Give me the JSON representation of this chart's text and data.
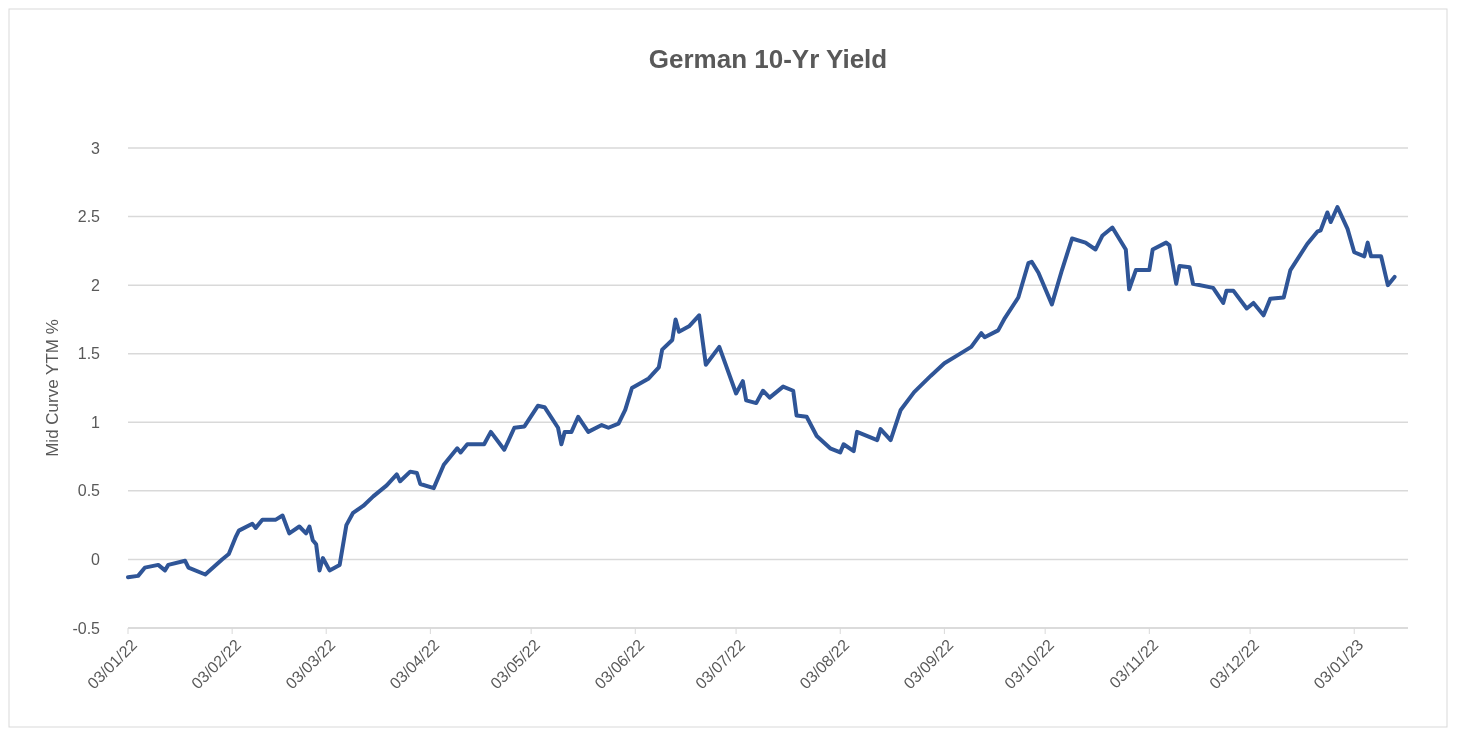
{
  "chart_data": {
    "type": "line",
    "title": "German 10-Yr Yield",
    "ylabel": "Mid Curve YTM %",
    "x": [
      "2022-01-03",
      "2022-01-06",
      "2022-01-08",
      "2022-01-12",
      "2022-01-14",
      "2022-01-15",
      "2022-01-20",
      "2022-01-21",
      "2022-01-26",
      "2022-01-31",
      "2022-02-02",
      "2022-02-04",
      "2022-02-05",
      "2022-02-09",
      "2022-02-10",
      "2022-02-12",
      "2022-02-16",
      "2022-02-18",
      "2022-02-20",
      "2022-02-23",
      "2022-02-25",
      "2022-02-26",
      "2022-02-27",
      "2022-02-28",
      "2022-03-01",
      "2022-03-02",
      "2022-03-04",
      "2022-03-07",
      "2022-03-09",
      "2022-03-11",
      "2022-03-14",
      "2022-03-17",
      "2022-03-21",
      "2022-03-24",
      "2022-03-25",
      "2022-03-28",
      "2022-03-30",
      "2022-03-31",
      "2022-04-04",
      "2022-04-07",
      "2022-04-11",
      "2022-04-12",
      "2022-04-14",
      "2022-04-19",
      "2022-04-21",
      "2022-04-25",
      "2022-04-28",
      "2022-05-01",
      "2022-05-05",
      "2022-05-07",
      "2022-05-11",
      "2022-05-12",
      "2022-05-13",
      "2022-05-15",
      "2022-05-17",
      "2022-05-20",
      "2022-05-24",
      "2022-05-26",
      "2022-05-29",
      "2022-05-31",
      "2022-06-02",
      "2022-06-07",
      "2022-06-10",
      "2022-06-11",
      "2022-06-14",
      "2022-06-15",
      "2022-06-16",
      "2022-06-19",
      "2022-06-22",
      "2022-06-24",
      "2022-06-28",
      "2022-07-03",
      "2022-07-05",
      "2022-07-06",
      "2022-07-09",
      "2022-07-11",
      "2022-07-13",
      "2022-07-17",
      "2022-07-20",
      "2022-07-21",
      "2022-07-24",
      "2022-07-27",
      "2022-07-31",
      "2022-08-03",
      "2022-08-04",
      "2022-08-07",
      "2022-08-08",
      "2022-08-14",
      "2022-08-15",
      "2022-08-18",
      "2022-08-21",
      "2022-08-25",
      "2022-08-30",
      "2022-09-03",
      "2022-09-07",
      "2022-09-11",
      "2022-09-14",
      "2022-09-15",
      "2022-09-19",
      "2022-09-21",
      "2022-09-25",
      "2022-09-28",
      "2022-09-29",
      "2022-10-01",
      "2022-10-05",
      "2022-10-08",
      "2022-10-11",
      "2022-10-15",
      "2022-10-18",
      "2022-10-20",
      "2022-10-23",
      "2022-10-27",
      "2022-10-28",
      "2022-10-30",
      "2022-11-03",
      "2022-11-04",
      "2022-11-08",
      "2022-11-09",
      "2022-11-11",
      "2022-11-12",
      "2022-11-15",
      "2022-11-16",
      "2022-11-22",
      "2022-11-25",
      "2022-11-26",
      "2022-11-28",
      "2022-12-02",
      "2022-12-04",
      "2022-12-07",
      "2022-12-09",
      "2022-12-13",
      "2022-12-15",
      "2022-12-20",
      "2022-12-23",
      "2022-12-24",
      "2022-12-26",
      "2022-12-27",
      "2022-12-29",
      "2023-01-01",
      "2023-01-03",
      "2023-01-06",
      "2023-01-07",
      "2023-01-08",
      "2023-01-11",
      "2023-01-13",
      "2023-01-15"
    ],
    "series": [
      {
        "color": "#2f5597",
        "values": [
          -0.13,
          -0.12,
          -0.06,
          -0.04,
          -0.08,
          -0.04,
          -0.01,
          -0.06,
          -0.11,
          0.0,
          0.04,
          0.16,
          0.21,
          0.26,
          0.23,
          0.29,
          0.29,
          0.32,
          0.19,
          0.24,
          0.19,
          0.24,
          0.14,
          0.11,
          -0.08,
          0.01,
          -0.08,
          -0.04,
          0.25,
          0.34,
          0.39,
          0.46,
          0.54,
          0.62,
          0.57,
          0.64,
          0.63,
          0.55,
          0.52,
          0.69,
          0.81,
          0.78,
          0.84,
          0.84,
          0.93,
          0.8,
          0.96,
          0.97,
          1.12,
          1.11,
          0.96,
          0.84,
          0.93,
          0.93,
          1.04,
          0.93,
          0.98,
          0.96,
          0.99,
          1.09,
          1.25,
          1.32,
          1.4,
          1.53,
          1.6,
          1.75,
          1.66,
          1.7,
          1.78,
          1.42,
          1.55,
          1.21,
          1.3,
          1.16,
          1.14,
          1.23,
          1.18,
          1.26,
          1.23,
          1.05,
          1.04,
          0.9,
          0.81,
          0.78,
          0.84,
          0.79,
          0.93,
          0.87,
          0.95,
          0.87,
          1.09,
          1.22,
          1.34,
          1.43,
          1.49,
          1.55,
          1.65,
          1.62,
          1.67,
          1.76,
          1.91,
          2.16,
          2.17,
          2.09,
          1.86,
          2.11,
          2.34,
          2.31,
          2.26,
          2.36,
          2.42,
          2.26,
          1.97,
          2.11,
          2.11,
          2.26,
          2.31,
          2.29,
          2.01,
          2.14,
          2.13,
          2.01,
          1.98,
          1.87,
          1.96,
          1.96,
          1.83,
          1.87,
          1.78,
          1.9,
          1.91,
          2.11,
          2.3,
          2.39,
          2.4,
          2.53,
          2.46,
          2.57,
          2.41,
          2.24,
          2.21,
          2.31,
          2.21,
          2.21,
          2.0,
          2.06
        ]
      }
    ],
    "xlim": [
      "2022-01-03",
      "2023-01-19"
    ],
    "xticks": [
      {
        "value": "2022-01-03",
        "label": "03/01/22"
      },
      {
        "value": "2022-02-03",
        "label": "03/02/22"
      },
      {
        "value": "2022-03-03",
        "label": "03/03/22"
      },
      {
        "value": "2022-04-03",
        "label": "03/04/22"
      },
      {
        "value": "2022-05-03",
        "label": "03/05/22"
      },
      {
        "value": "2022-06-03",
        "label": "03/06/22"
      },
      {
        "value": "2022-07-03",
        "label": "03/07/22"
      },
      {
        "value": "2022-08-03",
        "label": "03/08/22"
      },
      {
        "value": "2022-09-03",
        "label": "03/09/22"
      },
      {
        "value": "2022-10-03",
        "label": "03/10/22"
      },
      {
        "value": "2022-11-03",
        "label": "03/11/22"
      },
      {
        "value": "2022-12-03",
        "label": "03/12/22"
      },
      {
        "value": "2023-01-03",
        "label": "03/01/23"
      }
    ],
    "ylim": [
      -0.5,
      3
    ],
    "yticks": [
      -0.5,
      0,
      0.5,
      1,
      1.5,
      2,
      2.5,
      3
    ],
    "grid": "y"
  }
}
